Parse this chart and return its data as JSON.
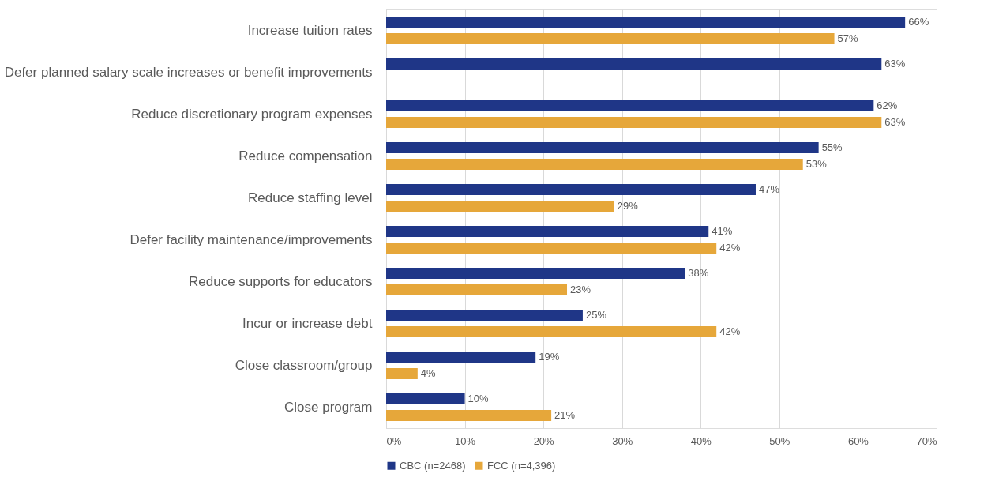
{
  "chart_data": {
    "type": "bar",
    "orientation": "horizontal",
    "categories": [
      "Increase tuition rates",
      "Defer planned salary scale increases or benefit improvements",
      "Reduce discretionary program expenses",
      "Reduce compensation",
      "Reduce staffing level",
      "Defer facility maintenance/improvements",
      "Reduce supports for educators",
      "Incur or increase debt",
      "Close classroom/group",
      "Close program"
    ],
    "series": [
      {
        "name": "CBC (n=2468)",
        "color": "#1f3687",
        "values": [
          66,
          63,
          62,
          55,
          47,
          41,
          38,
          25,
          19,
          10
        ],
        "value_labels": [
          "66%",
          "63%",
          "62%",
          "55%",
          "47%",
          "41%",
          "38%",
          "25%",
          "19%",
          "10%"
        ]
      },
      {
        "name": "FCC (n=4,396)",
        "color": "#e6a73a",
        "values": [
          57,
          null,
          63,
          53,
          29,
          42,
          23,
          42,
          4,
          21
        ],
        "value_labels": [
          "57%",
          null,
          "63%",
          "53%",
          "29%",
          "42%",
          "23%",
          "42%",
          "4%",
          "21%"
        ]
      }
    ],
    "xlim": [
      0,
      70
    ],
    "xticks": [
      {
        "value": 0,
        "label": "0%"
      },
      {
        "value": 10,
        "label": "10%"
      },
      {
        "value": 20,
        "label": "20%"
      },
      {
        "value": 30,
        "label": "30%"
      },
      {
        "value": 40,
        "label": "40%"
      },
      {
        "value": 50,
        "label": "50%"
      },
      {
        "value": 60,
        "label": "60%"
      },
      {
        "value": 70,
        "label": "70%"
      }
    ],
    "grid": "x",
    "legend": "bottom"
  }
}
